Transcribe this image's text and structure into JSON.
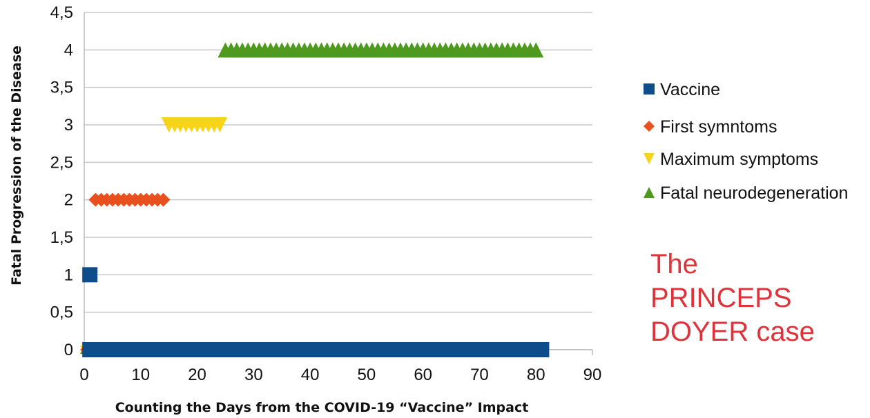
{
  "chart_data": {
    "type": "scatter",
    "title": "",
    "xlabel": "Counting the Days from the COVID-19 “Vaccine” Impact",
    "ylabel": "Fatal Progression of the Disease",
    "xlim": [
      0,
      90
    ],
    "ylim": [
      0,
      4.5
    ],
    "x_ticks": [
      "0",
      "10",
      "20",
      "30",
      "40",
      "50",
      "60",
      "70",
      "80",
      "90"
    ],
    "y_ticks": [
      "0",
      "0,5",
      "1",
      "1,5",
      "2",
      "2,5",
      "3",
      "3,5",
      "4",
      "4,5"
    ],
    "grid": "horizontal",
    "legend_position": "right",
    "series": [
      {
        "name": "Vaccine",
        "marker": "square",
        "color": "#0f4c8a",
        "points": [
          {
            "x": 1,
            "y": 1
          },
          {
            "x": 1,
            "y": 0
          },
          {
            "x": 2,
            "y": 0
          },
          {
            "x": 3,
            "y": 0
          },
          {
            "x": 4,
            "y": 0
          },
          {
            "x": 5,
            "y": 0
          },
          {
            "x": 6,
            "y": 0
          },
          {
            "x": 7,
            "y": 0
          },
          {
            "x": 8,
            "y": 0
          },
          {
            "x": 9,
            "y": 0
          },
          {
            "x": 10,
            "y": 0
          },
          {
            "x": 11,
            "y": 0
          },
          {
            "x": 12,
            "y": 0
          },
          {
            "x": 13,
            "y": 0
          },
          {
            "x": 14,
            "y": 0
          },
          {
            "x": 15,
            "y": 0
          },
          {
            "x": 16,
            "y": 0
          },
          {
            "x": 17,
            "y": 0
          },
          {
            "x": 18,
            "y": 0
          },
          {
            "x": 19,
            "y": 0
          },
          {
            "x": 20,
            "y": 0
          },
          {
            "x": 21,
            "y": 0
          },
          {
            "x": 22,
            "y": 0
          },
          {
            "x": 23,
            "y": 0
          },
          {
            "x": 24,
            "y": 0
          },
          {
            "x": 25,
            "y": 0
          },
          {
            "x": 26,
            "y": 0
          },
          {
            "x": 27,
            "y": 0
          },
          {
            "x": 28,
            "y": 0
          },
          {
            "x": 29,
            "y": 0
          },
          {
            "x": 30,
            "y": 0
          },
          {
            "x": 31,
            "y": 0
          },
          {
            "x": 32,
            "y": 0
          },
          {
            "x": 33,
            "y": 0
          },
          {
            "x": 34,
            "y": 0
          },
          {
            "x": 35,
            "y": 0
          },
          {
            "x": 36,
            "y": 0
          },
          {
            "x": 37,
            "y": 0
          },
          {
            "x": 38,
            "y": 0
          },
          {
            "x": 39,
            "y": 0
          },
          {
            "x": 40,
            "y": 0
          },
          {
            "x": 41,
            "y": 0
          },
          {
            "x": 42,
            "y": 0
          },
          {
            "x": 43,
            "y": 0
          },
          {
            "x": 44,
            "y": 0
          },
          {
            "x": 45,
            "y": 0
          },
          {
            "x": 46,
            "y": 0
          },
          {
            "x": 47,
            "y": 0
          },
          {
            "x": 48,
            "y": 0
          },
          {
            "x": 49,
            "y": 0
          },
          {
            "x": 50,
            "y": 0
          },
          {
            "x": 51,
            "y": 0
          },
          {
            "x": 52,
            "y": 0
          },
          {
            "x": 53,
            "y": 0
          },
          {
            "x": 54,
            "y": 0
          },
          {
            "x": 55,
            "y": 0
          },
          {
            "x": 56,
            "y": 0
          },
          {
            "x": 57,
            "y": 0
          },
          {
            "x": 58,
            "y": 0
          },
          {
            "x": 59,
            "y": 0
          },
          {
            "x": 60,
            "y": 0
          },
          {
            "x": 61,
            "y": 0
          },
          {
            "x": 62,
            "y": 0
          },
          {
            "x": 63,
            "y": 0
          },
          {
            "x": 64,
            "y": 0
          },
          {
            "x": 65,
            "y": 0
          },
          {
            "x": 66,
            "y": 0
          },
          {
            "x": 67,
            "y": 0
          },
          {
            "x": 68,
            "y": 0
          },
          {
            "x": 69,
            "y": 0
          },
          {
            "x": 70,
            "y": 0
          },
          {
            "x": 71,
            "y": 0
          },
          {
            "x": 72,
            "y": 0
          },
          {
            "x": 73,
            "y": 0
          },
          {
            "x": 74,
            "y": 0
          },
          {
            "x": 75,
            "y": 0
          },
          {
            "x": 76,
            "y": 0
          },
          {
            "x": 77,
            "y": 0
          },
          {
            "x": 78,
            "y": 0
          },
          {
            "x": 79,
            "y": 0
          },
          {
            "x": 80,
            "y": 0
          },
          {
            "x": 81,
            "y": 0
          }
        ]
      },
      {
        "name": "First symntoms",
        "marker": "diamond",
        "color": "#e8501e",
        "points": [
          {
            "x": 0,
            "y": 0
          },
          {
            "x": 2,
            "y": 2
          },
          {
            "x": 3,
            "y": 2
          },
          {
            "x": 4,
            "y": 2
          },
          {
            "x": 5,
            "y": 2
          },
          {
            "x": 6,
            "y": 2
          },
          {
            "x": 7,
            "y": 2
          },
          {
            "x": 8,
            "y": 2
          },
          {
            "x": 9,
            "y": 2
          },
          {
            "x": 10,
            "y": 2
          },
          {
            "x": 11,
            "y": 2
          },
          {
            "x": 12,
            "y": 2
          },
          {
            "x": 13,
            "y": 2
          },
          {
            "x": 14,
            "y": 2
          }
        ]
      },
      {
        "name": "Maximum symptoms",
        "marker": "triangle-down",
        "color": "#f7d417",
        "points": [
          {
            "x": 0,
            "y": 0
          },
          {
            "x": 15,
            "y": 3
          },
          {
            "x": 16,
            "y": 3
          },
          {
            "x": 17,
            "y": 3
          },
          {
            "x": 18,
            "y": 3
          },
          {
            "x": 19,
            "y": 3
          },
          {
            "x": 20,
            "y": 3
          },
          {
            "x": 21,
            "y": 3
          },
          {
            "x": 22,
            "y": 3
          },
          {
            "x": 23,
            "y": 3
          },
          {
            "x": 24,
            "y": 3
          }
        ]
      },
      {
        "name": "Fatal neurodegeneration",
        "marker": "triangle-up",
        "color": "#4e9a1e",
        "points": [
          {
            "x": 0,
            "y": 0
          },
          {
            "x": 25,
            "y": 4
          },
          {
            "x": 26,
            "y": 4
          },
          {
            "x": 27,
            "y": 4
          },
          {
            "x": 28,
            "y": 4
          },
          {
            "x": 29,
            "y": 4
          },
          {
            "x": 30,
            "y": 4
          },
          {
            "x": 31,
            "y": 4
          },
          {
            "x": 32,
            "y": 4
          },
          {
            "x": 33,
            "y": 4
          },
          {
            "x": 34,
            "y": 4
          },
          {
            "x": 35,
            "y": 4
          },
          {
            "x": 36,
            "y": 4
          },
          {
            "x": 37,
            "y": 4
          },
          {
            "x": 38,
            "y": 4
          },
          {
            "x": 39,
            "y": 4
          },
          {
            "x": 40,
            "y": 4
          },
          {
            "x": 41,
            "y": 4
          },
          {
            "x": 42,
            "y": 4
          },
          {
            "x": 43,
            "y": 4
          },
          {
            "x": 44,
            "y": 4
          },
          {
            "x": 45,
            "y": 4
          },
          {
            "x": 46,
            "y": 4
          },
          {
            "x": 47,
            "y": 4
          },
          {
            "x": 48,
            "y": 4
          },
          {
            "x": 49,
            "y": 4
          },
          {
            "x": 50,
            "y": 4
          },
          {
            "x": 51,
            "y": 4
          },
          {
            "x": 52,
            "y": 4
          },
          {
            "x": 53,
            "y": 4
          },
          {
            "x": 54,
            "y": 4
          },
          {
            "x": 55,
            "y": 4
          },
          {
            "x": 56,
            "y": 4
          },
          {
            "x": 57,
            "y": 4
          },
          {
            "x": 58,
            "y": 4
          },
          {
            "x": 59,
            "y": 4
          },
          {
            "x": 60,
            "y": 4
          },
          {
            "x": 61,
            "y": 4
          },
          {
            "x": 62,
            "y": 4
          },
          {
            "x": 63,
            "y": 4
          },
          {
            "x": 64,
            "y": 4
          },
          {
            "x": 65,
            "y": 4
          },
          {
            "x": 66,
            "y": 4
          },
          {
            "x": 67,
            "y": 4
          },
          {
            "x": 68,
            "y": 4
          },
          {
            "x": 69,
            "y": 4
          },
          {
            "x": 70,
            "y": 4
          },
          {
            "x": 71,
            "y": 4
          },
          {
            "x": 72,
            "y": 4
          },
          {
            "x": 73,
            "y": 4
          },
          {
            "x": 74,
            "y": 4
          },
          {
            "x": 75,
            "y": 4
          },
          {
            "x": 76,
            "y": 4
          },
          {
            "x": 77,
            "y": 4
          },
          {
            "x": 78,
            "y": 4
          },
          {
            "x": 79,
            "y": 4
          },
          {
            "x": 80,
            "y": 4
          }
        ]
      }
    ],
    "annotation": {
      "lines": [
        "The",
        "PRINCEPS",
        "DOYER case"
      ],
      "color": "#e0323a"
    }
  }
}
